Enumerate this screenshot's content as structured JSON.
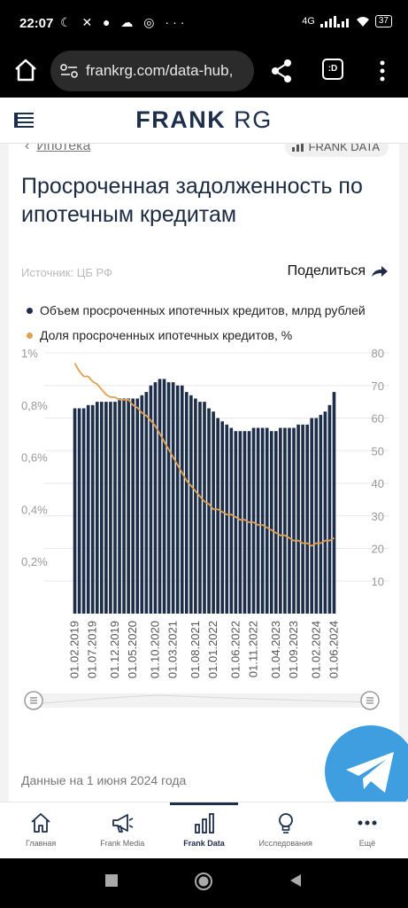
{
  "status": {
    "time": "22:07",
    "network": "4G",
    "battery": "37"
  },
  "browser": {
    "url": "frankrg.com/data-hub,",
    "tab_label": ":D"
  },
  "header": {
    "logo_bold": "FRANK",
    "logo_light": " RG"
  },
  "breadcrumb": {
    "arrow": "‹",
    "label": "Ипотека"
  },
  "badge": {
    "label": "FRANK DATA"
  },
  "page": {
    "title": "Просроченная задолженность по ипотечным кредитам",
    "source": "Источник: ЦБ РФ",
    "share": "Поделиться",
    "data_note": "Данные на 1 июня 2024 года"
  },
  "legend": {
    "series1": "Объем просроченных ипотечных кредитов, млрд рублей",
    "series2": "Доля просроченных ипотечных кредитов, %"
  },
  "colors": {
    "bar": "#1d2e4b",
    "line": "#e0a050",
    "accent": "#1d2e4b",
    "telegram": "#3e9ee0"
  },
  "chart_data": {
    "type": "bar",
    "left_axis": {
      "ticks": [
        "1%",
        "0,8%",
        "0,6%",
        "0,4%",
        "0,2%"
      ],
      "ylim": [
        0,
        1
      ]
    },
    "right_axis": {
      "ticks": [
        "80",
        "70",
        "60",
        "50",
        "40",
        "30",
        "20",
        "10"
      ],
      "ylim": [
        0,
        80
      ]
    },
    "x_tick_labels": [
      "01.02.2019",
      "01.07.2019",
      "01.12.2019",
      "01.05.2020",
      "01.10.2020",
      "01.03.2021",
      "01.08.2021",
      "01.01.2022",
      "01.06.2022",
      "01.11.2022",
      "01.04.2023",
      "01.09.2023",
      "01.02.2024",
      "01.06.2024"
    ],
    "series": [
      {
        "name": "Объем просроченных ипотечных кредитов, млрд рублей",
        "type": "bar",
        "axis": "right",
        "values": [
          63,
          63,
          63,
          64,
          64,
          65,
          65,
          65,
          65,
          65,
          66,
          66,
          66,
          66,
          66,
          67,
          68,
          70,
          71,
          72,
          72,
          71,
          71,
          70,
          70,
          68,
          67,
          66,
          65,
          65,
          63,
          62,
          60,
          59,
          58,
          57,
          56,
          56,
          56,
          56,
          57,
          57,
          57,
          57,
          56,
          56,
          57,
          57,
          57,
          57,
          58,
          58,
          58,
          60,
          60,
          61,
          62,
          64,
          68
        ]
      },
      {
        "name": "Доля просроченных ипотечных кредитов, %",
        "type": "line",
        "axis": "left",
        "values": [
          0.96,
          0.93,
          0.91,
          0.91,
          0.89,
          0.88,
          0.86,
          0.84,
          0.83,
          0.83,
          0.82,
          0.82,
          0.82,
          0.8,
          0.79,
          0.77,
          0.76,
          0.74,
          0.72,
          0.69,
          0.66,
          0.63,
          0.6,
          0.57,
          0.54,
          0.51,
          0.49,
          0.47,
          0.45,
          0.43,
          0.42,
          0.4,
          0.4,
          0.39,
          0.38,
          0.38,
          0.37,
          0.36,
          0.36,
          0.35,
          0.35,
          0.34,
          0.34,
          0.33,
          0.32,
          0.31,
          0.3,
          0.3,
          0.29,
          0.28,
          0.28,
          0.27,
          0.27,
          0.26,
          0.27,
          0.27,
          0.28,
          0.28,
          0.29
        ]
      }
    ],
    "grid": true
  },
  "nav": {
    "items": [
      {
        "label": "Главная",
        "icon": "home-icon"
      },
      {
        "label": "Frank Media",
        "icon": "megaphone-icon"
      },
      {
        "label": "Frank Data",
        "icon": "bar-chart-icon"
      },
      {
        "label": "Исследования",
        "icon": "lightbulb-icon"
      },
      {
        "label": "Ещё",
        "icon": "more-icon"
      }
    ]
  }
}
